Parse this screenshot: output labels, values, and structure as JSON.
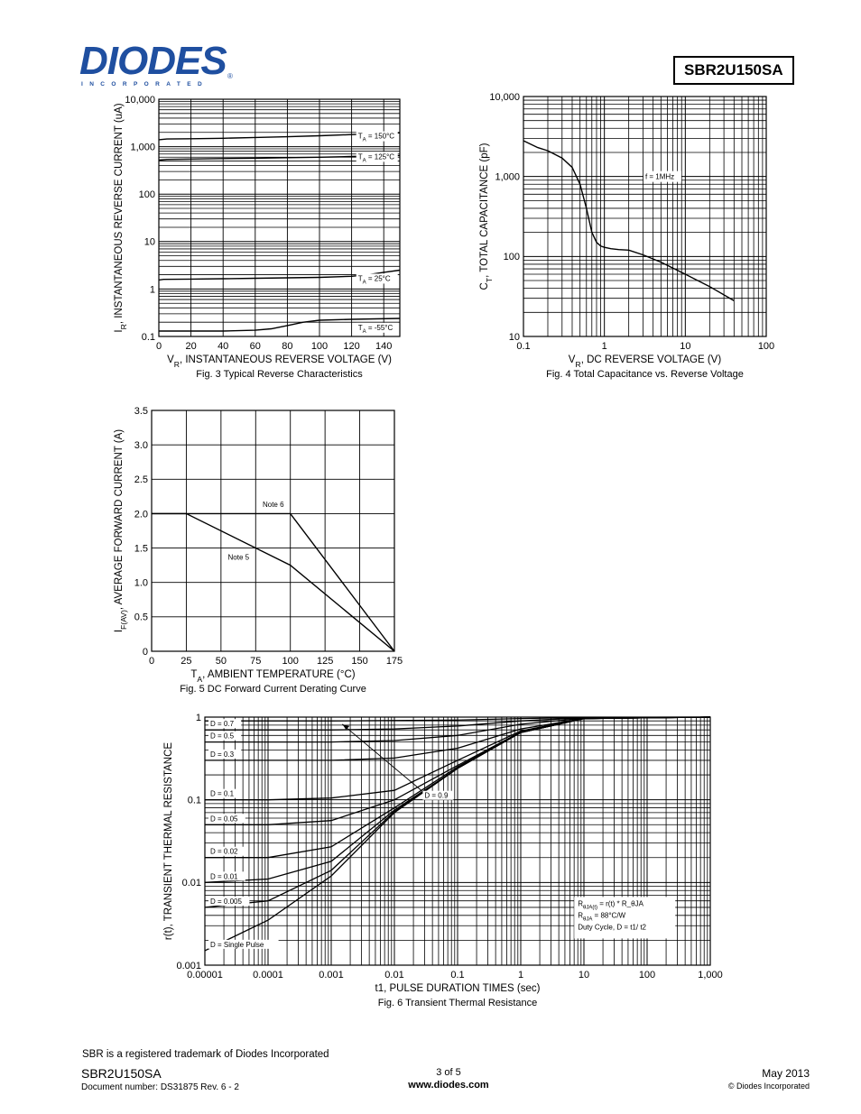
{
  "header": {
    "logo_text": "DIODES",
    "logo_sub": "INCORPORATED",
    "logo_reg": "®",
    "part_number": "SBR2U150SA"
  },
  "colors": {
    "brand": "#1f4fa0",
    "ink": "#000000"
  },
  "footer": {
    "trademark": "SBR is a registered trademark of Diodes Incorporated",
    "part": "SBR2U150SA",
    "docnum": "Document number: DS31875  Rev. 6 - 2",
    "page": "3 of 5",
    "url": "www.diodes.com",
    "date": "May 2013",
    "copyright": "© Diodes Incorporated"
  },
  "chart_data": [
    {
      "id": "fig3",
      "type": "line",
      "caption": "Fig. 3 Typical Reverse Characteristics",
      "xlabel": "V_R, INSTANTANEOUS REVERSE VOLTAGE (V)",
      "ylabel": "I_R, INSTANTANEOUS REVERSE CURRENT (uA)",
      "xlim": [
        0,
        150
      ],
      "ylim": [
        0.1,
        10000
      ],
      "yscale": "log",
      "x_ticks": [
        "0",
        "20",
        "40",
        "60",
        "80",
        "100",
        "120",
        "140"
      ],
      "y_ticks": [
        "0.1",
        "1",
        "10",
        "100",
        "1,000",
        "10,000"
      ],
      "grid": true,
      "series": [
        {
          "name": "T_A = 150°C",
          "x": [
            0,
            5,
            20,
            40,
            60,
            80,
            100,
            120,
            150
          ],
          "y": [
            1400,
            1450,
            1470,
            1500,
            1560,
            1620,
            1700,
            1800,
            1950
          ]
        },
        {
          "name": "T_A = 125°C",
          "x": [
            0,
            5,
            20,
            40,
            60,
            80,
            100,
            120,
            150
          ],
          "y": [
            520,
            540,
            550,
            560,
            570,
            585,
            600,
            620,
            650
          ]
        },
        {
          "name": "T_A = 25°C",
          "x": [
            0,
            3,
            20,
            40,
            60,
            80,
            100,
            120,
            130,
            140,
            150
          ],
          "y": [
            1.55,
            1.6,
            1.62,
            1.65,
            1.68,
            1.72,
            1.76,
            1.85,
            2.0,
            2.25,
            2.5
          ]
        },
        {
          "name": "T_A = -55°C",
          "x": [
            0,
            3,
            20,
            40,
            60,
            70,
            80,
            90,
            100,
            120,
            150
          ],
          "y": [
            0.13,
            0.13,
            0.13,
            0.13,
            0.135,
            0.145,
            0.17,
            0.2,
            0.22,
            0.23,
            0.24
          ]
        }
      ]
    },
    {
      "id": "fig4",
      "type": "line",
      "caption": "Fig. 4 Total Capacitance vs. Reverse Voltage",
      "xlabel": "V_R, DC REVERSE VOLTAGE (V)",
      "ylabel": "C_T, TOTAL CAPACITANCE (pF)",
      "xlim": [
        0.1,
        100
      ],
      "ylim": [
        10,
        10000
      ],
      "xscale": "log",
      "yscale": "log",
      "x_ticks": [
        "0.1",
        "1",
        "10",
        "100"
      ],
      "y_ticks": [
        "10",
        "100",
        "1,000",
        "10,000"
      ],
      "grid": true,
      "annotation": "f = 1MHz",
      "series": [
        {
          "name": "",
          "x": [
            0.1,
            0.15,
            0.2,
            0.3,
            0.4,
            0.5,
            0.6,
            0.7,
            0.8,
            0.9,
            1.0,
            1.2,
            1.5,
            2,
            3,
            5,
            10,
            20,
            40
          ],
          "y": [
            2800,
            2300,
            2100,
            1700,
            1300,
            800,
            400,
            200,
            150,
            135,
            130,
            125,
            122,
            120,
            105,
            85,
            60,
            42,
            28
          ]
        }
      ]
    },
    {
      "id": "fig5",
      "type": "line",
      "caption": "Fig. 5 DC Forward Current Derating Curve",
      "xlabel": "T_A, AMBIENT TEMPERATURE (°C)",
      "ylabel": "I_F(AV), AVERAGE FORWARD CURRENT (A)",
      "xlim": [
        0,
        175
      ],
      "ylim": [
        0,
        3.5
      ],
      "x_ticks": [
        "0",
        "25",
        "50",
        "75",
        "100",
        "125",
        "150",
        "175"
      ],
      "y_ticks": [
        "0",
        "0.5",
        "1.0",
        "1.5",
        "2.0",
        "2.5",
        "3.0",
        "3.5"
      ],
      "grid": true,
      "series": [
        {
          "name": "Note 6",
          "x": [
            0,
            100,
            175
          ],
          "y": [
            2.0,
            2.0,
            0
          ]
        },
        {
          "name": "Note 5",
          "x": [
            0,
            25,
            100,
            175
          ],
          "y": [
            2.0,
            2.0,
            1.25,
            0
          ]
        }
      ]
    },
    {
      "id": "fig6",
      "type": "line",
      "caption": "Fig. 6 Transient Thermal Resistance",
      "xlabel": "t1, PULSE DURATION TIMES (sec)",
      "ylabel": "r(t), TRANSIENT THERMAL RESISTANCE",
      "xlim": [
        1e-05,
        1000
      ],
      "ylim": [
        0.001,
        1
      ],
      "xscale": "log",
      "yscale": "log",
      "x_ticks": [
        "0.00001",
        "0.0001",
        "0.001",
        "0.01",
        "0.1",
        "1",
        "10",
        "100",
        "1,000"
      ],
      "y_ticks": [
        "0.001",
        "0.01",
        "0.1",
        "1"
      ],
      "grid": true,
      "annotations": [
        "R_θJA(t) = r(t) * R_θJA",
        "R_θJA = 88°C/W",
        "Duty Cycle, D = t1/ t2"
      ],
      "series": [
        {
          "name": "D = 0.9",
          "x": [
            1e-05,
            0.001,
            0.1,
            1,
            10,
            1000
          ],
          "y": [
            0.9,
            0.9,
            0.92,
            0.96,
            0.99,
            1.0
          ]
        },
        {
          "name": "D = 0.7",
          "x": [
            1e-05,
            0.001,
            0.01,
            0.1,
            1,
            10,
            1000
          ],
          "y": [
            0.7,
            0.7,
            0.72,
            0.78,
            0.9,
            0.98,
            1.0
          ]
        },
        {
          "name": "D = 0.5",
          "x": [
            1e-05,
            0.001,
            0.01,
            0.1,
            1,
            10,
            1000
          ],
          "y": [
            0.5,
            0.5,
            0.52,
            0.6,
            0.82,
            0.97,
            1.0
          ]
        },
        {
          "name": "D = 0.3",
          "x": [
            1e-05,
            0.001,
            0.01,
            0.1,
            1,
            10,
            1000
          ],
          "y": [
            0.3,
            0.3,
            0.32,
            0.42,
            0.72,
            0.96,
            1.0
          ]
        },
        {
          "name": "D = 0.1",
          "x": [
            1e-05,
            0.0001,
            0.001,
            0.01,
            0.1,
            1,
            10,
            1000
          ],
          "y": [
            0.1,
            0.1,
            0.105,
            0.13,
            0.3,
            0.68,
            0.96,
            1.0
          ]
        },
        {
          "name": "D = 0.05",
          "x": [
            1e-05,
            0.0001,
            0.001,
            0.01,
            0.1,
            1,
            10,
            1000
          ],
          "y": [
            0.05,
            0.05,
            0.056,
            0.1,
            0.26,
            0.66,
            0.96,
            1.0
          ]
        },
        {
          "name": "D = 0.02",
          "x": [
            1e-05,
            0.0001,
            0.001,
            0.01,
            0.1,
            1,
            10,
            1000
          ],
          "y": [
            0.02,
            0.02,
            0.027,
            0.08,
            0.25,
            0.65,
            0.96,
            1.0
          ]
        },
        {
          "name": "D = 0.01",
          "x": [
            1e-05,
            0.0001,
            0.001,
            0.01,
            0.1,
            1,
            10,
            1000
          ],
          "y": [
            0.01,
            0.011,
            0.018,
            0.075,
            0.24,
            0.65,
            0.96,
            1.0
          ]
        },
        {
          "name": "D = 0.005",
          "x": [
            1e-05,
            0.0001,
            0.001,
            0.01,
            0.1,
            1,
            10,
            1000
          ],
          "y": [
            0.005,
            0.006,
            0.014,
            0.072,
            0.24,
            0.65,
            0.96,
            1.0
          ]
        },
        {
          "name": "D = Single Pulse",
          "x": [
            1e-05,
            0.0001,
            0.001,
            0.01,
            0.1,
            1,
            10,
            1000
          ],
          "y": [
            0.0015,
            0.0035,
            0.012,
            0.07,
            0.24,
            0.65,
            0.96,
            1.0
          ]
        }
      ]
    }
  ]
}
